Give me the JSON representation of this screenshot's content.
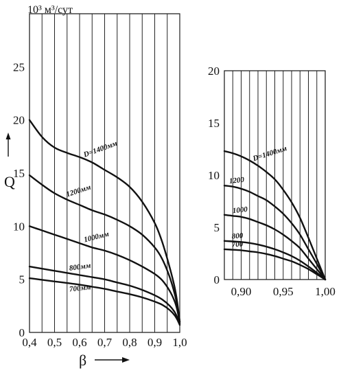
{
  "chart_data": [
    {
      "type": "line",
      "title": "",
      "unit_label": "10³ м³/сут",
      "xlabel": "β",
      "ylabel": "Q",
      "xlim": [
        0.4,
        1.0
      ],
      "ylim": [
        0,
        30
      ],
      "x_ticks": [
        "0,4",
        "0,5",
        "0,6",
        "0,7",
        "0,8",
        "0,9",
        "1,0"
      ],
      "y_ticks": [
        "0",
        "5",
        "10",
        "15",
        "20",
        "25"
      ],
      "grid": true,
      "series": [
        {
          "name": "D=1400мм",
          "label": "D=1400мм",
          "label_at": 0.62,
          "label_offset": 3,
          "label_angle": -20,
          "points": [
            [
              0.4,
              20
            ],
            [
              0.45,
              18.4
            ],
            [
              0.5,
              17.4
            ],
            [
              0.55,
              16.9
            ],
            [
              0.6,
              16.5
            ],
            [
              0.65,
              16.0
            ],
            [
              0.7,
              15.3
            ],
            [
              0.75,
              14.6
            ],
            [
              0.8,
              13.7
            ],
            [
              0.85,
              12.3
            ],
            [
              0.9,
              10.3
            ],
            [
              0.93,
              8.5
            ],
            [
              0.96,
              6.1
            ],
            [
              0.98,
              4.2
            ],
            [
              0.99,
              2.8
            ],
            [
              1.0,
              1.0
            ]
          ]
        },
        {
          "name": "1200мм",
          "label": "1200мм",
          "label_at": 0.55,
          "label_offset": 4,
          "label_angle": -18,
          "points": [
            [
              0.4,
              14.8
            ],
            [
              0.45,
              13.9
            ],
            [
              0.5,
              13.1
            ],
            [
              0.55,
              12.5
            ],
            [
              0.6,
              12.0
            ],
            [
              0.65,
              11.5
            ],
            [
              0.7,
              11.1
            ],
            [
              0.75,
              10.6
            ],
            [
              0.8,
              10.0
            ],
            [
              0.85,
              9.2
            ],
            [
              0.9,
              8.0
            ],
            [
              0.93,
              6.9
            ],
            [
              0.96,
              5.2
            ],
            [
              0.98,
              3.6
            ],
            [
              0.99,
              2.5
            ],
            [
              1.0,
              1.0
            ]
          ]
        },
        {
          "name": "1000мм",
          "label": "1000мм",
          "label_at": 0.62,
          "label_offset": 4,
          "label_angle": -14,
          "points": [
            [
              0.4,
              10.0
            ],
            [
              0.45,
              9.6
            ],
            [
              0.5,
              9.2
            ],
            [
              0.55,
              8.8
            ],
            [
              0.6,
              8.4
            ],
            [
              0.65,
              8.0
            ],
            [
              0.7,
              7.7
            ],
            [
              0.75,
              7.3
            ],
            [
              0.8,
              6.8
            ],
            [
              0.85,
              6.2
            ],
            [
              0.9,
              5.5
            ],
            [
              0.93,
              4.9
            ],
            [
              0.96,
              3.9
            ],
            [
              0.98,
              2.9
            ],
            [
              0.99,
              2.1
            ],
            [
              1.0,
              0.9
            ]
          ]
        },
        {
          "name": "800мм",
          "label": "800мм",
          "label_at": 0.56,
          "label_offset": 4,
          "label_angle": -8,
          "points": [
            [
              0.4,
              6.2
            ],
            [
              0.45,
              6.0
            ],
            [
              0.5,
              5.8
            ],
            [
              0.55,
              5.6
            ],
            [
              0.6,
              5.4
            ],
            [
              0.65,
              5.2
            ],
            [
              0.7,
              5.0
            ],
            [
              0.75,
              4.7
            ],
            [
              0.8,
              4.4
            ],
            [
              0.85,
              4.0
            ],
            [
              0.9,
              3.5
            ],
            [
              0.93,
              3.1
            ],
            [
              0.96,
              2.5
            ],
            [
              0.98,
              1.9
            ],
            [
              0.99,
              1.4
            ],
            [
              1.0,
              0.8
            ]
          ]
        },
        {
          "name": "700мм",
          "label": "700мм",
          "label_at": 0.56,
          "label_offset": -12,
          "label_angle": -6,
          "points": [
            [
              0.4,
              5.1
            ],
            [
              0.45,
              4.95
            ],
            [
              0.5,
              4.8
            ],
            [
              0.55,
              4.65
            ],
            [
              0.6,
              4.5
            ],
            [
              0.65,
              4.3
            ],
            [
              0.7,
              4.1
            ],
            [
              0.75,
              3.85
            ],
            [
              0.8,
              3.6
            ],
            [
              0.85,
              3.3
            ],
            [
              0.9,
              2.9
            ],
            [
              0.93,
              2.6
            ],
            [
              0.96,
              2.1
            ],
            [
              0.98,
              1.6
            ],
            [
              0.99,
              1.2
            ],
            [
              1.0,
              0.7
            ]
          ]
        }
      ]
    },
    {
      "type": "line",
      "title": "",
      "xlabel": "",
      "ylabel": "",
      "xlim": [
        0.88,
        1.0
      ],
      "ylim": [
        0,
        20
      ],
      "x_ticks": [
        "0,90",
        "0,95",
        "1,00"
      ],
      "y_ticks": [
        "0",
        "5",
        "10",
        "15",
        "20"
      ],
      "grid": true,
      "series": [
        {
          "name": "D=1400мм",
          "label": "D=1400мм",
          "label_at": 0.915,
          "label_offset": 3,
          "label_angle": -18,
          "points": [
            [
              0.88,
              12.3
            ],
            [
              0.89,
              12.1
            ],
            [
              0.9,
              11.8
            ],
            [
              0.91,
              11.4
            ],
            [
              0.92,
              10.9
            ],
            [
              0.93,
              10.3
            ],
            [
              0.94,
              9.6
            ],
            [
              0.95,
              8.6
            ],
            [
              0.96,
              7.4
            ],
            [
              0.97,
              5.9
            ],
            [
              0.98,
              4.0
            ],
            [
              0.99,
              2.0
            ],
            [
              1.0,
              0.0
            ]
          ]
        },
        {
          "name": "1200",
          "label": "1200",
          "label_at": 0.886,
          "label_offset": 4,
          "label_angle": -6,
          "points": [
            [
              0.88,
              9.0
            ],
            [
              0.89,
              8.9
            ],
            [
              0.9,
              8.7
            ],
            [
              0.91,
              8.4
            ],
            [
              0.92,
              8.0
            ],
            [
              0.93,
              7.6
            ],
            [
              0.94,
              7.0
            ],
            [
              0.95,
              6.3
            ],
            [
              0.96,
              5.4
            ],
            [
              0.97,
              4.3
            ],
            [
              0.98,
              2.9
            ],
            [
              0.99,
              1.5
            ],
            [
              1.0,
              0.0
            ]
          ]
        },
        {
          "name": "1000",
          "label": "1000",
          "label_at": 0.89,
          "label_offset": 4,
          "label_angle": -6,
          "points": [
            [
              0.88,
              6.2
            ],
            [
              0.89,
              6.1
            ],
            [
              0.9,
              6.0
            ],
            [
              0.91,
              5.8
            ],
            [
              0.92,
              5.5
            ],
            [
              0.93,
              5.2
            ],
            [
              0.94,
              4.8
            ],
            [
              0.95,
              4.3
            ],
            [
              0.96,
              3.7
            ],
            [
              0.97,
              3.0
            ],
            [
              0.98,
              2.0
            ],
            [
              0.99,
              1.0
            ],
            [
              1.0,
              0.0
            ]
          ]
        },
        {
          "name": "800",
          "label": "800",
          "label_at": 0.889,
          "label_offset": 4,
          "label_angle": -4,
          "points": [
            [
              0.88,
              3.7
            ],
            [
              0.89,
              3.65
            ],
            [
              0.9,
              3.6
            ],
            [
              0.91,
              3.5
            ],
            [
              0.92,
              3.35
            ],
            [
              0.93,
              3.15
            ],
            [
              0.94,
              2.9
            ],
            [
              0.95,
              2.6
            ],
            [
              0.96,
              2.25
            ],
            [
              0.97,
              1.8
            ],
            [
              0.98,
              1.25
            ],
            [
              0.99,
              0.65
            ],
            [
              1.0,
              0.0
            ]
          ]
        },
        {
          "name": "700",
          "label": "700",
          "label_at": 0.889,
          "label_offset": 4,
          "label_angle": -4,
          "points": [
            [
              0.88,
              2.9
            ],
            [
              0.89,
              2.85
            ],
            [
              0.9,
              2.8
            ],
            [
              0.91,
              2.7
            ],
            [
              0.92,
              2.6
            ],
            [
              0.93,
              2.45
            ],
            [
              0.94,
              2.25
            ],
            [
              0.95,
              2.0
            ],
            [
              0.96,
              1.75
            ],
            [
              0.97,
              1.4
            ],
            [
              0.98,
              1.0
            ],
            [
              0.99,
              0.5
            ],
            [
              1.0,
              0.0
            ]
          ]
        }
      ]
    }
  ]
}
